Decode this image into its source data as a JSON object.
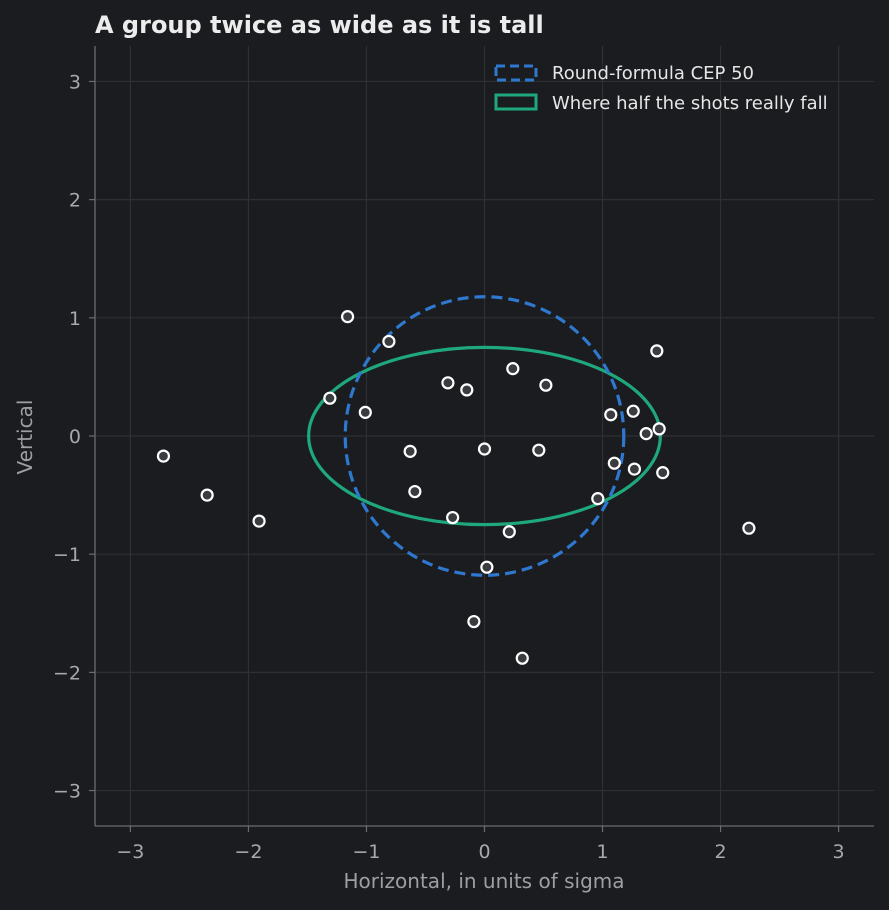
{
  "chart_data": {
    "type": "scatter",
    "title": "A group twice as wide as it is tall",
    "xlabel": "Horizontal, in units of sigma",
    "ylabel": "Vertical",
    "xlim": [
      -3.3,
      3.3
    ],
    "ylim": [
      -3.3,
      3.3
    ],
    "xticks": [
      -3,
      -2,
      -1,
      0,
      1,
      2,
      3
    ],
    "yticks": [
      -3,
      -2,
      -1,
      0,
      1,
      2,
      3
    ],
    "xtick_labels": [
      "−3",
      "−2",
      "−1",
      "0",
      "1",
      "2",
      "3"
    ],
    "ytick_labels": [
      "−3",
      "−2",
      "−1",
      "0",
      "1",
      "2",
      "3"
    ],
    "grid": true,
    "legend_position": "top-right",
    "colors": {
      "background": "#1a1c1f",
      "grid": "#2e3034",
      "circle": "#2f78d0",
      "ellipse": "#1fa87b",
      "point_fill": "#d9d9d9",
      "point_edge": "#ffffff"
    },
    "legend": [
      {
        "label": "Round-formula CEP 50",
        "style": "dashed",
        "color": "#2f78d0"
      },
      {
        "label": "Where half the shots really fall",
        "style": "solid",
        "color": "#1fa87b"
      }
    ],
    "shapes": {
      "circle_radius": 1.18,
      "ellipse_semi_x": 1.49,
      "ellipse_semi_y": 0.75
    },
    "points": [
      {
        "x": -2.72,
        "y": -0.17
      },
      {
        "x": -2.35,
        "y": -0.5
      },
      {
        "x": -1.91,
        "y": -0.72
      },
      {
        "x": -1.16,
        "y": 1.01
      },
      {
        "x": -0.81,
        "y": 0.8
      },
      {
        "x": -1.31,
        "y": 0.32
      },
      {
        "x": -1.01,
        "y": 0.2
      },
      {
        "x": -0.31,
        "y": 0.45
      },
      {
        "x": -0.15,
        "y": 0.39
      },
      {
        "x": 0.24,
        "y": 0.57
      },
      {
        "x": 0.52,
        "y": 0.43
      },
      {
        "x": -0.63,
        "y": -0.13
      },
      {
        "x": 0.0,
        "y": -0.11
      },
      {
        "x": 0.46,
        "y": -0.12
      },
      {
        "x": -0.59,
        "y": -0.47
      },
      {
        "x": -0.27,
        "y": -0.69
      },
      {
        "x": 0.21,
        "y": -0.81
      },
      {
        "x": 0.02,
        "y": -1.11
      },
      {
        "x": -0.09,
        "y": -1.57
      },
      {
        "x": 0.32,
        "y": -1.88
      },
      {
        "x": 0.96,
        "y": -0.53
      },
      {
        "x": 1.07,
        "y": 0.18
      },
      {
        "x": 1.26,
        "y": 0.21
      },
      {
        "x": 1.46,
        "y": 0.72
      },
      {
        "x": 1.37,
        "y": 0.02
      },
      {
        "x": 1.48,
        "y": 0.06
      },
      {
        "x": 1.1,
        "y": -0.23
      },
      {
        "x": 1.27,
        "y": -0.28
      },
      {
        "x": 1.51,
        "y": -0.31
      },
      {
        "x": 2.24,
        "y": -0.78
      }
    ]
  }
}
